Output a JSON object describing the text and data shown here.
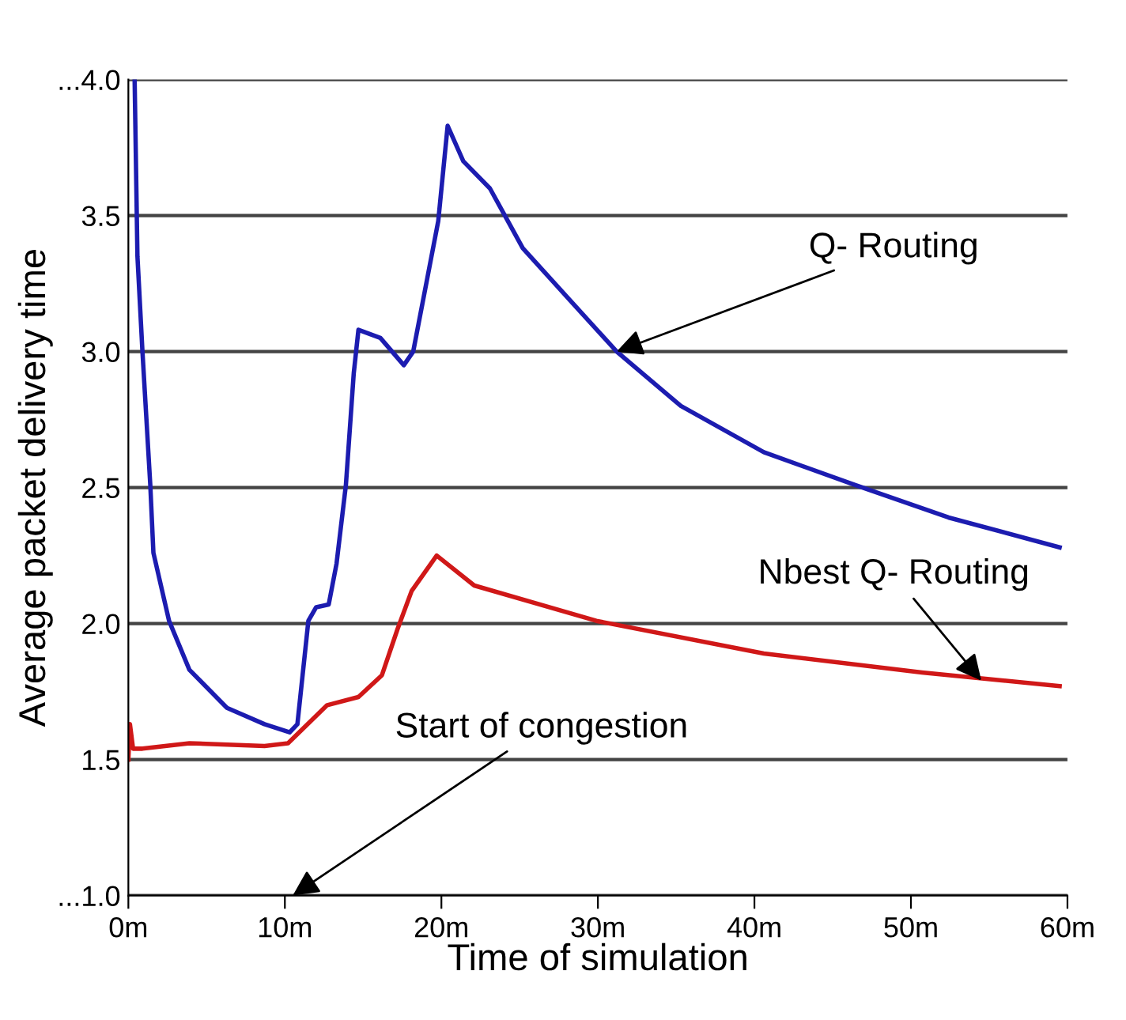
{
  "chart_data": {
    "type": "line",
    "xlabel": "Time of simulation",
    "ylabel": "Average packet delivery time",
    "xlim": [
      0,
      60
    ],
    "ylim": [
      1.0,
      4.0
    ],
    "xticks": [
      {
        "value": 0,
        "label": "0m"
      },
      {
        "value": 10,
        "label": "10m"
      },
      {
        "value": 20,
        "label": "20m"
      },
      {
        "value": 30,
        "label": "30m"
      },
      {
        "value": 40,
        "label": "40m"
      },
      {
        "value": 50,
        "label": "50m"
      },
      {
        "value": 60,
        "label": "60m"
      }
    ],
    "yticks": [
      {
        "value": 1.0,
        "label": "...1.0"
      },
      1.5,
      {
        "value": 2.0,
        "label": "2.0"
      },
      2.5,
      {
        "value": 3.0,
        "label": "3.0"
      },
      3.5,
      {
        "value": 4.0,
        "label": "...4.0"
      }
    ],
    "grid": "y",
    "legend": false,
    "marker": "none",
    "line_style": "solid",
    "series": [
      {
        "color": "#1c1cb0",
        "x": [
          0.4,
          0.58,
          0.9,
          1.4,
          1.6,
          2.6,
          3.9,
          6.3,
          8.7,
          10.3,
          10.8,
          11.5,
          12.0,
          12.8,
          13.3,
          13.9,
          14.4,
          14.7,
          16.1,
          17.6,
          18.2,
          19.1,
          19.8,
          20.4,
          21.4,
          23.1,
          25.2,
          28.2,
          31.2,
          35.3,
          40.6,
          46.4,
          52.4,
          59.5
        ],
        "values": [
          4.0,
          3.35,
          3.0,
          2.51,
          2.26,
          2.01,
          1.83,
          1.69,
          1.63,
          1.6,
          1.63,
          2.01,
          2.06,
          2.07,
          2.22,
          2.51,
          2.92,
          3.08,
          3.05,
          2.95,
          3.0,
          3.27,
          3.48,
          3.83,
          3.7,
          3.6,
          3.38,
          3.19,
          3.0,
          2.8,
          2.63,
          2.51,
          2.39,
          2.28
        ]
      },
      {
        "color": "#d01818",
        "x": [
          0,
          0.1,
          0.3,
          0.9,
          3.9,
          8.7,
          10.2,
          12.7,
          14.7,
          16.2,
          17.2,
          18.1,
          19.7,
          22.1,
          29.9,
          40.6,
          50.7,
          59.5
        ],
        "values": [
          1.5,
          1.63,
          1.54,
          1.54,
          1.56,
          1.55,
          1.56,
          1.7,
          1.73,
          1.81,
          1.98,
          2.12,
          2.25,
          2.14,
          2.01,
          1.89,
          1.82,
          1.77
        ]
      }
    ],
    "annotations": [
      {
        "text": "Q- Routing",
        "x": 31.2,
        "y": 3.0
      },
      {
        "text": "Nbest Q- Routing",
        "x": 54.5,
        "y": 1.79
      },
      "Start of congestion"
    ]
  }
}
